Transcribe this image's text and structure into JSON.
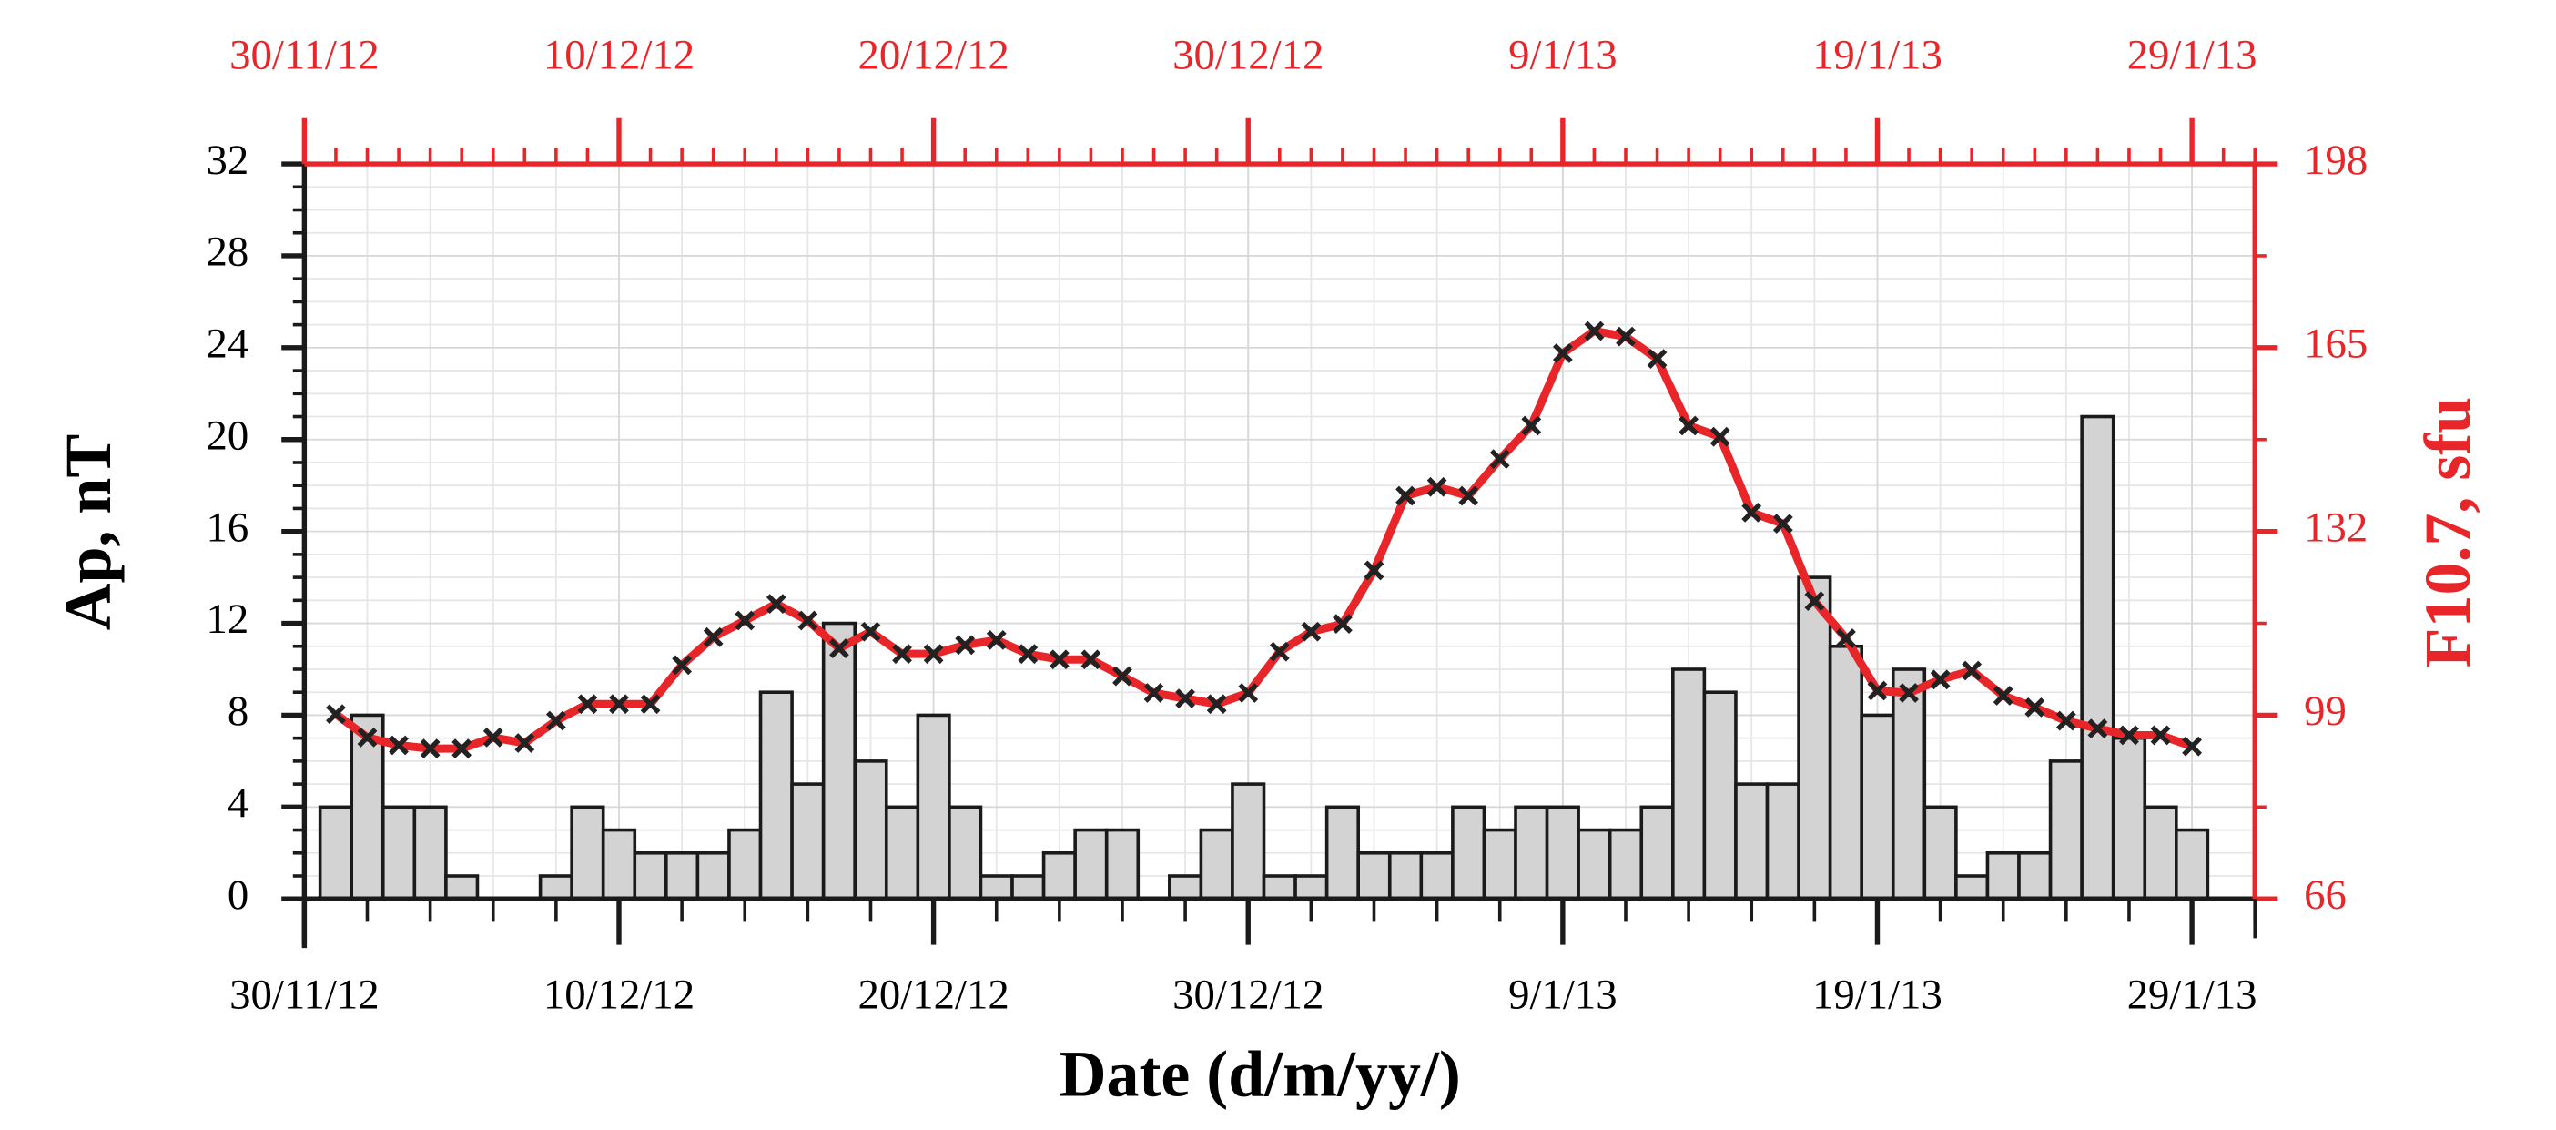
{
  "chart_data": {
    "type": "bar",
    "xlabel": "Date (d/m/yy/)",
    "ylabel": "Ap, nT",
    "y2label": "F10.7, sfu",
    "x": [
      "1/12/12",
      "2/12/12",
      "3/12/12",
      "4/12/12",
      "5/12/12",
      "6/12/12",
      "7/12/12",
      "8/12/12",
      "9/12/12",
      "10/12/12",
      "11/12/12",
      "12/12/12",
      "13/12/12",
      "14/12/12",
      "15/12/12",
      "16/12/12",
      "17/12/12",
      "18/12/12",
      "19/12/12",
      "20/12/12",
      "21/12/12",
      "22/12/12",
      "23/12/12",
      "24/12/12",
      "25/12/12",
      "26/12/12",
      "27/12/12",
      "28/12/12",
      "29/12/12",
      "30/12/12",
      "31/12/12",
      "1/1/13",
      "2/1/13",
      "3/1/13",
      "4/1/13",
      "5/1/13",
      "6/1/13",
      "7/1/13",
      "8/1/13",
      "9/1/13",
      "10/1/13",
      "11/1/13",
      "12/1/13",
      "13/1/13",
      "14/1/13",
      "15/1/13",
      "16/1/13",
      "17/1/13",
      "18/1/13",
      "19/1/13",
      "20/1/13",
      "21/1/13",
      "22/1/13",
      "23/1/13",
      "24/1/13",
      "25/1/13",
      "26/1/13",
      "27/1/13",
      "28/1/13",
      "29/1/13"
    ],
    "series": [
      {
        "name": "Ap",
        "type": "bar",
        "color": "#d3d3d3",
        "values": [
          4,
          8,
          4,
          4,
          1,
          0,
          0,
          1,
          4,
          3,
          2,
          2,
          2,
          3,
          9,
          5,
          12,
          6,
          4,
          8,
          4,
          1,
          1,
          2,
          3,
          3,
          0,
          1,
          3,
          5,
          1,
          1,
          4,
          2,
          2,
          2,
          4,
          3,
          4,
          4,
          3,
          3,
          4,
          10,
          9,
          5,
          5,
          14,
          11,
          8,
          10,
          4,
          1,
          2,
          2,
          6,
          21,
          7,
          4,
          3
        ]
      },
      {
        "name": "F10.7",
        "type": "line",
        "axis": "y2",
        "color": "#e8262a",
        "marker_color": "#222222",
        "values": [
          99.2,
          95,
          93.6,
          93,
          93,
          95,
          94,
          98,
          101,
          101,
          101,
          108,
          113,
          116,
          119,
          116,
          111,
          114,
          110,
          110,
          111.6,
          112.5,
          110,
          109,
          109,
          106,
          103,
          102,
          101,
          103,
          110.4,
          114,
          115.4,
          125,
          138.4,
          140,
          138.4,
          145,
          151,
          164,
          168,
          167,
          163,
          151,
          149,
          135.4,
          133.4,
          119.5,
          112.8,
          103.4,
          103,
          105.4,
          107,
          102.5,
          100.4,
          98,
          96.6,
          95.4,
          95.4,
          93.4
        ]
      }
    ],
    "xlim": [
      "30/11/12",
      "31/1/13"
    ],
    "xticks": [
      "30/11/12",
      "10/12/12",
      "20/12/12",
      "30/12/12",
      "9/1/13",
      "19/1/13",
      "29/1/13"
    ],
    "ylim": [
      0,
      32
    ],
    "yticks": [
      0,
      4,
      8,
      12,
      16,
      20,
      24,
      28,
      32
    ],
    "y2lim": [
      66,
      198
    ],
    "y2ticks": [
      66,
      99,
      132,
      165,
      198
    ],
    "axis_color": "#e8262a",
    "grid": true
  }
}
